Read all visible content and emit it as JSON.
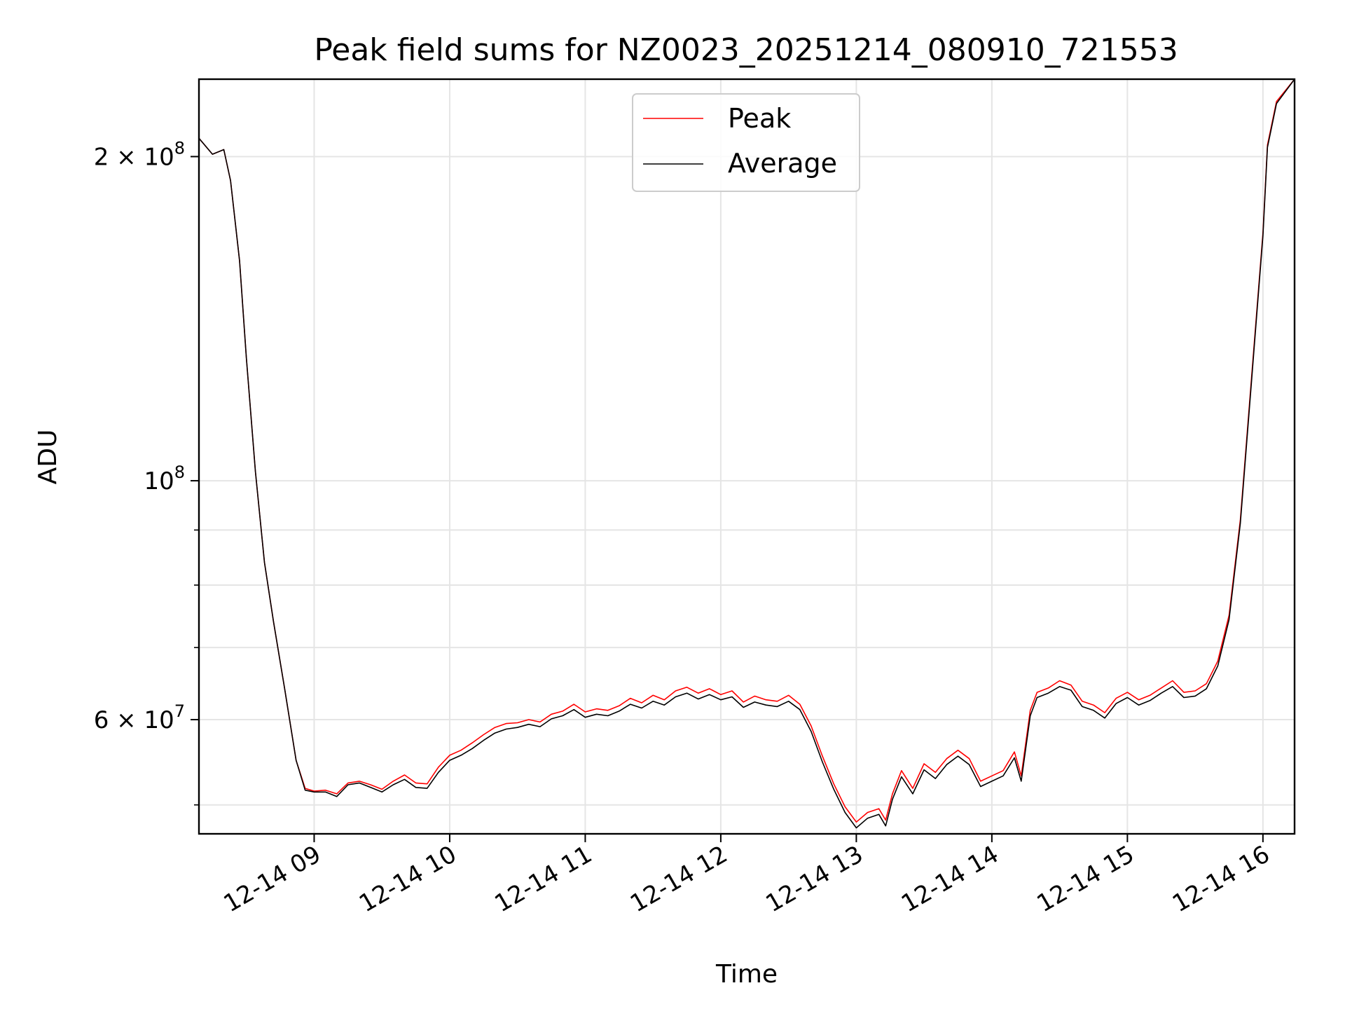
{
  "chart_data": {
    "type": "line",
    "title": "Peak field sums for NZ0023_20251214_080910_721553",
    "xlabel": "Time",
    "ylabel": "ADU",
    "y_scale": "log",
    "xlim": [
      "2025-12-14 08:09",
      "2025-12-14 16:14"
    ],
    "ylim": [
      47000000,
      236000000
    ],
    "x_ticks": [
      {
        "value": "2025-12-14 09:00",
        "label": "12-14 09"
      },
      {
        "value": "2025-12-14 10:00",
        "label": "12-14 10"
      },
      {
        "value": "2025-12-14 11:00",
        "label": "12-14 11"
      },
      {
        "value": "2025-12-14 12:00",
        "label": "12-14 12"
      },
      {
        "value": "2025-12-14 13:00",
        "label": "12-14 13"
      },
      {
        "value": "2025-12-14 14:00",
        "label": "12-14 14"
      },
      {
        "value": "2025-12-14 15:00",
        "label": "12-14 15"
      },
      {
        "value": "2025-12-14 16:00",
        "label": "12-14 16"
      }
    ],
    "y_major_ticks": [
      {
        "value": 60000000,
        "label_main": "6 × 10",
        "label_exp": "7"
      },
      {
        "value": 100000000,
        "label_main": "10",
        "label_exp": "8"
      },
      {
        "value": 200000000,
        "label_main": "2 × 10",
        "label_exp": "8"
      }
    ],
    "y_minor_ticks": [
      50000000,
      70000000,
      80000000,
      90000000
    ],
    "grid": true,
    "legend_position": "top-center",
    "series": [
      {
        "name": "Peak",
        "color": "#ff0000",
        "points": [
          [
            "2025-12-14 08:09",
            208000000
          ],
          [
            "2025-12-14 08:15",
            201000000
          ],
          [
            "2025-12-14 08:20",
            203000000
          ],
          [
            "2025-12-14 08:23",
            190000000
          ],
          [
            "2025-12-14 08:27",
            160000000
          ],
          [
            "2025-12-14 08:30",
            130000000
          ],
          [
            "2025-12-14 08:34",
            102000000
          ],
          [
            "2025-12-14 08:38",
            84000000
          ],
          [
            "2025-12-14 08:42",
            74000000
          ],
          [
            "2025-12-14 08:47",
            64000000
          ],
          [
            "2025-12-14 08:52",
            55000000
          ],
          [
            "2025-12-14 08:56",
            51800000
          ],
          [
            "2025-12-14 09:00",
            51500000
          ],
          [
            "2025-12-14 09:05",
            51600000
          ],
          [
            "2025-12-14 09:10",
            51200000
          ],
          [
            "2025-12-14 09:15",
            52400000
          ],
          [
            "2025-12-14 09:20",
            52600000
          ],
          [
            "2025-12-14 09:25",
            52200000
          ],
          [
            "2025-12-14 09:30",
            51700000
          ],
          [
            "2025-12-14 09:35",
            52600000
          ],
          [
            "2025-12-14 09:40",
            53300000
          ],
          [
            "2025-12-14 09:45",
            52400000
          ],
          [
            "2025-12-14 09:50",
            52300000
          ],
          [
            "2025-12-14 09:55",
            54200000
          ],
          [
            "2025-12-14 10:00",
            55600000
          ],
          [
            "2025-12-14 10:05",
            56200000
          ],
          [
            "2025-12-14 10:10",
            57100000
          ],
          [
            "2025-12-14 10:15",
            58100000
          ],
          [
            "2025-12-14 10:20",
            59000000
          ],
          [
            "2025-12-14 10:25",
            59500000
          ],
          [
            "2025-12-14 10:30",
            59600000
          ],
          [
            "2025-12-14 10:35",
            60000000
          ],
          [
            "2025-12-14 10:40",
            59700000
          ],
          [
            "2025-12-14 10:45",
            60700000
          ],
          [
            "2025-12-14 10:50",
            61100000
          ],
          [
            "2025-12-14 10:55",
            62000000
          ],
          [
            "2025-12-14 11:00",
            61000000
          ],
          [
            "2025-12-14 11:05",
            61400000
          ],
          [
            "2025-12-14 11:10",
            61200000
          ],
          [
            "2025-12-14 11:15",
            61800000
          ],
          [
            "2025-12-14 11:20",
            62800000
          ],
          [
            "2025-12-14 11:25",
            62200000
          ],
          [
            "2025-12-14 11:30",
            63200000
          ],
          [
            "2025-12-14 11:35",
            62600000
          ],
          [
            "2025-12-14 11:40",
            63800000
          ],
          [
            "2025-12-14 11:45",
            64300000
          ],
          [
            "2025-12-14 11:50",
            63500000
          ],
          [
            "2025-12-14 11:55",
            64100000
          ],
          [
            "2025-12-14 12:00",
            63300000
          ],
          [
            "2025-12-14 12:05",
            63800000
          ],
          [
            "2025-12-14 12:10",
            62300000
          ],
          [
            "2025-12-14 12:15",
            63100000
          ],
          [
            "2025-12-14 12:20",
            62600000
          ],
          [
            "2025-12-14 12:25",
            62400000
          ],
          [
            "2025-12-14 12:30",
            63200000
          ],
          [
            "2025-12-14 12:35",
            62000000
          ],
          [
            "2025-12-14 12:40",
            59200000
          ],
          [
            "2025-12-14 12:45",
            55500000
          ],
          [
            "2025-12-14 12:50",
            52300000
          ],
          [
            "2025-12-14 12:55",
            49800000
          ],
          [
            "2025-12-14 13:00",
            48200000
          ],
          [
            "2025-12-14 13:05",
            49200000
          ],
          [
            "2025-12-14 13:10",
            49600000
          ],
          [
            "2025-12-14 13:13",
            48400000
          ],
          [
            "2025-12-14 13:16",
            51200000
          ],
          [
            "2025-12-14 13:20",
            53800000
          ],
          [
            "2025-12-14 13:25",
            51800000
          ],
          [
            "2025-12-14 13:30",
            54600000
          ],
          [
            "2025-12-14 13:35",
            53600000
          ],
          [
            "2025-12-14 13:40",
            55200000
          ],
          [
            "2025-12-14 13:45",
            56200000
          ],
          [
            "2025-12-14 13:50",
            55200000
          ],
          [
            "2025-12-14 13:55",
            52600000
          ],
          [
            "2025-12-14 14:00",
            53200000
          ],
          [
            "2025-12-14 14:05",
            53800000
          ],
          [
            "2025-12-14 14:10",
            56000000
          ],
          [
            "2025-12-14 14:13",
            53200000
          ],
          [
            "2025-12-14 14:17",
            61200000
          ],
          [
            "2025-12-14 14:20",
            63600000
          ],
          [
            "2025-12-14 14:25",
            64200000
          ],
          [
            "2025-12-14 14:30",
            65200000
          ],
          [
            "2025-12-14 14:35",
            64600000
          ],
          [
            "2025-12-14 14:40",
            62400000
          ],
          [
            "2025-12-14 14:45",
            61900000
          ],
          [
            "2025-12-14 14:50",
            60900000
          ],
          [
            "2025-12-14 14:55",
            62800000
          ],
          [
            "2025-12-14 15:00",
            63600000
          ],
          [
            "2025-12-14 15:05",
            62600000
          ],
          [
            "2025-12-14 15:10",
            63200000
          ],
          [
            "2025-12-14 15:15",
            64200000
          ],
          [
            "2025-12-14 15:20",
            65200000
          ],
          [
            "2025-12-14 15:25",
            63600000
          ],
          [
            "2025-12-14 15:30",
            63800000
          ],
          [
            "2025-12-14 15:35",
            64800000
          ],
          [
            "2025-12-14 15:40",
            68000000
          ],
          [
            "2025-12-14 15:45",
            75000000
          ],
          [
            "2025-12-14 15:50",
            92000000
          ],
          [
            "2025-12-14 15:55",
            125000000
          ],
          [
            "2025-12-14 16:00",
            170000000
          ],
          [
            "2025-12-14 16:02",
            205000000
          ],
          [
            "2025-12-14 16:06",
            225000000
          ],
          [
            "2025-12-14 16:14",
            236000000
          ]
        ]
      },
      {
        "name": "Average",
        "color": "#000000",
        "points": [
          [
            "2025-12-14 08:09",
            208000000
          ],
          [
            "2025-12-14 08:15",
            201000000
          ],
          [
            "2025-12-14 08:20",
            203000000
          ],
          [
            "2025-12-14 08:23",
            190000000
          ],
          [
            "2025-12-14 08:27",
            160000000
          ],
          [
            "2025-12-14 08:30",
            130000000
          ],
          [
            "2025-12-14 08:34",
            102000000
          ],
          [
            "2025-12-14 08:38",
            84000000
          ],
          [
            "2025-12-14 08:42",
            74000000
          ],
          [
            "2025-12-14 08:47",
            64000000
          ],
          [
            "2025-12-14 08:52",
            55000000
          ],
          [
            "2025-12-14 08:56",
            51600000
          ],
          [
            "2025-12-14 09:00",
            51400000
          ],
          [
            "2025-12-14 09:05",
            51400000
          ],
          [
            "2025-12-14 09:10",
            50900000
          ],
          [
            "2025-12-14 09:15",
            52200000
          ],
          [
            "2025-12-14 09:20",
            52400000
          ],
          [
            "2025-12-14 09:25",
            51900000
          ],
          [
            "2025-12-14 09:30",
            51400000
          ],
          [
            "2025-12-14 09:35",
            52200000
          ],
          [
            "2025-12-14 09:40",
            52800000
          ],
          [
            "2025-12-14 09:45",
            51900000
          ],
          [
            "2025-12-14 09:50",
            51800000
          ],
          [
            "2025-12-14 09:55",
            53600000
          ],
          [
            "2025-12-14 10:00",
            55000000
          ],
          [
            "2025-12-14 10:05",
            55600000
          ],
          [
            "2025-12-14 10:10",
            56400000
          ],
          [
            "2025-12-14 10:15",
            57400000
          ],
          [
            "2025-12-14 10:20",
            58300000
          ],
          [
            "2025-12-14 10:25",
            58800000
          ],
          [
            "2025-12-14 10:30",
            59000000
          ],
          [
            "2025-12-14 10:35",
            59400000
          ],
          [
            "2025-12-14 10:40",
            59100000
          ],
          [
            "2025-12-14 10:45",
            60100000
          ],
          [
            "2025-12-14 10:50",
            60500000
          ],
          [
            "2025-12-14 10:55",
            61300000
          ],
          [
            "2025-12-14 11:00",
            60300000
          ],
          [
            "2025-12-14 11:05",
            60700000
          ],
          [
            "2025-12-14 11:10",
            60500000
          ],
          [
            "2025-12-14 11:15",
            61100000
          ],
          [
            "2025-12-14 11:20",
            62000000
          ],
          [
            "2025-12-14 11:25",
            61500000
          ],
          [
            "2025-12-14 11:30",
            62400000
          ],
          [
            "2025-12-14 11:35",
            61900000
          ],
          [
            "2025-12-14 11:40",
            63000000
          ],
          [
            "2025-12-14 11:45",
            63500000
          ],
          [
            "2025-12-14 11:50",
            62700000
          ],
          [
            "2025-12-14 11:55",
            63300000
          ],
          [
            "2025-12-14 12:00",
            62600000
          ],
          [
            "2025-12-14 12:05",
            63000000
          ],
          [
            "2025-12-14 12:10",
            61600000
          ],
          [
            "2025-12-14 12:15",
            62300000
          ],
          [
            "2025-12-14 12:20",
            61900000
          ],
          [
            "2025-12-14 12:25",
            61700000
          ],
          [
            "2025-12-14 12:30",
            62400000
          ],
          [
            "2025-12-14 12:35",
            61300000
          ],
          [
            "2025-12-14 12:40",
            58500000
          ],
          [
            "2025-12-14 12:45",
            54800000
          ],
          [
            "2025-12-14 12:50",
            51700000
          ],
          [
            "2025-12-14 12:55",
            49200000
          ],
          [
            "2025-12-14 13:00",
            47600000
          ],
          [
            "2025-12-14 13:05",
            48600000
          ],
          [
            "2025-12-14 13:10",
            49000000
          ],
          [
            "2025-12-14 13:13",
            47800000
          ],
          [
            "2025-12-14 13:16",
            50600000
          ],
          [
            "2025-12-14 13:20",
            53100000
          ],
          [
            "2025-12-14 13:25",
            51200000
          ],
          [
            "2025-12-14 13:30",
            53900000
          ],
          [
            "2025-12-14 13:35",
            52900000
          ],
          [
            "2025-12-14 13:40",
            54500000
          ],
          [
            "2025-12-14 13:45",
            55500000
          ],
          [
            "2025-12-14 13:50",
            54500000
          ],
          [
            "2025-12-14 13:55",
            52000000
          ],
          [
            "2025-12-14 14:00",
            52600000
          ],
          [
            "2025-12-14 14:05",
            53200000
          ],
          [
            "2025-12-14 14:10",
            55300000
          ],
          [
            "2025-12-14 14:13",
            52600000
          ],
          [
            "2025-12-14 14:17",
            60500000
          ],
          [
            "2025-12-14 14:20",
            62900000
          ],
          [
            "2025-12-14 14:25",
            63500000
          ],
          [
            "2025-12-14 14:30",
            64400000
          ],
          [
            "2025-12-14 14:35",
            63900000
          ],
          [
            "2025-12-14 14:40",
            61700000
          ],
          [
            "2025-12-14 14:45",
            61200000
          ],
          [
            "2025-12-14 14:50",
            60200000
          ],
          [
            "2025-12-14 14:55",
            62100000
          ],
          [
            "2025-12-14 15:00",
            62900000
          ],
          [
            "2025-12-14 15:05",
            61900000
          ],
          [
            "2025-12-14 15:10",
            62500000
          ],
          [
            "2025-12-14 15:15",
            63500000
          ],
          [
            "2025-12-14 15:20",
            64400000
          ],
          [
            "2025-12-14 15:25",
            62900000
          ],
          [
            "2025-12-14 15:30",
            63100000
          ],
          [
            "2025-12-14 15:35",
            64100000
          ],
          [
            "2025-12-14 15:40",
            67300000
          ],
          [
            "2025-12-14 15:45",
            74300000
          ],
          [
            "2025-12-14 15:50",
            91300000
          ],
          [
            "2025-12-14 15:55",
            124000000
          ],
          [
            "2025-12-14 16:00",
            169000000
          ],
          [
            "2025-12-14 16:02",
            204000000
          ],
          [
            "2025-12-14 16:06",
            224000000
          ],
          [
            "2025-12-14 16:14",
            236000000
          ]
        ]
      }
    ]
  }
}
